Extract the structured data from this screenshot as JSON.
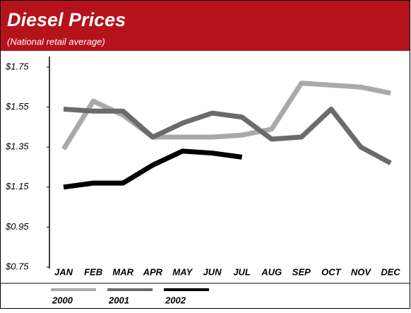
{
  "chart_data": {
    "type": "line",
    "title": "Diesel Prices",
    "subtitle": "(National retail average)",
    "categories": [
      "JAN",
      "FEB",
      "MAR",
      "APR",
      "MAY",
      "JUN",
      "JUL",
      "AUG",
      "SEP",
      "OCT",
      "NOV",
      "DEC"
    ],
    "series": [
      {
        "name": "2000",
        "color": "#a9a9a9",
        "values": [
          1.34,
          1.58,
          1.51,
          1.4,
          1.4,
          1.4,
          1.41,
          1.44,
          1.67,
          1.66,
          1.65,
          1.62
        ]
      },
      {
        "name": "2001",
        "color": "#6b6b6b",
        "values": [
          1.54,
          1.53,
          1.53,
          1.4,
          1.47,
          1.52,
          1.5,
          1.39,
          1.4,
          1.54,
          1.35,
          1.27
        ]
      },
      {
        "name": "2002",
        "color": "#000000",
        "values": [
          1.15,
          1.17,
          1.17,
          1.26,
          1.33,
          1.32,
          1.3,
          null,
          null,
          null,
          null,
          null
        ]
      }
    ],
    "ylim": [
      0.75,
      1.75
    ],
    "yticks": [
      {
        "value": 0.75,
        "label": "$0.75"
      },
      {
        "value": 0.95,
        "label": "$0.95"
      },
      {
        "value": 1.15,
        "label": "$1.15"
      },
      {
        "value": 1.35,
        "label": "$1.35"
      },
      {
        "value": 1.55,
        "label": "$1.55"
      },
      {
        "value": 1.75,
        "label": "$1.75"
      }
    ],
    "legend": "bottom"
  }
}
